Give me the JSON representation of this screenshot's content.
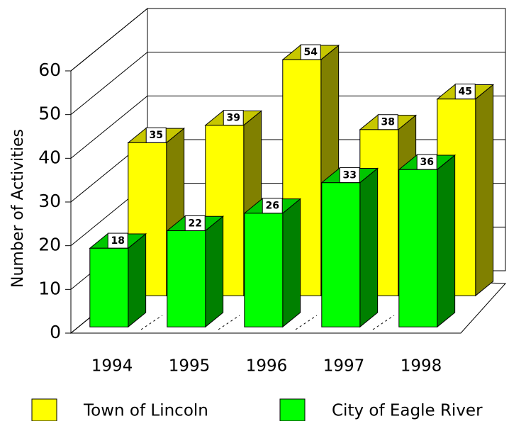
{
  "chart_data": {
    "type": "bar3d",
    "ylabel": "Number of Activities",
    "categories": [
      "1994",
      "1995",
      "1996",
      "1997",
      "1998"
    ],
    "series": [
      {
        "name": "Town of Lincoln",
        "color": "#ffff00",
        "values": [
          35,
          39,
          54,
          38,
          45
        ]
      },
      {
        "name": "City of Eagle River",
        "color": "#00ff00",
        "values": [
          18,
          22,
          26,
          33,
          36
        ]
      }
    ],
    "ylim": [
      0,
      60
    ],
    "yticks": [
      0,
      10,
      20,
      30,
      40,
      50,
      60
    ],
    "grid": true,
    "legend": "bottom"
  }
}
